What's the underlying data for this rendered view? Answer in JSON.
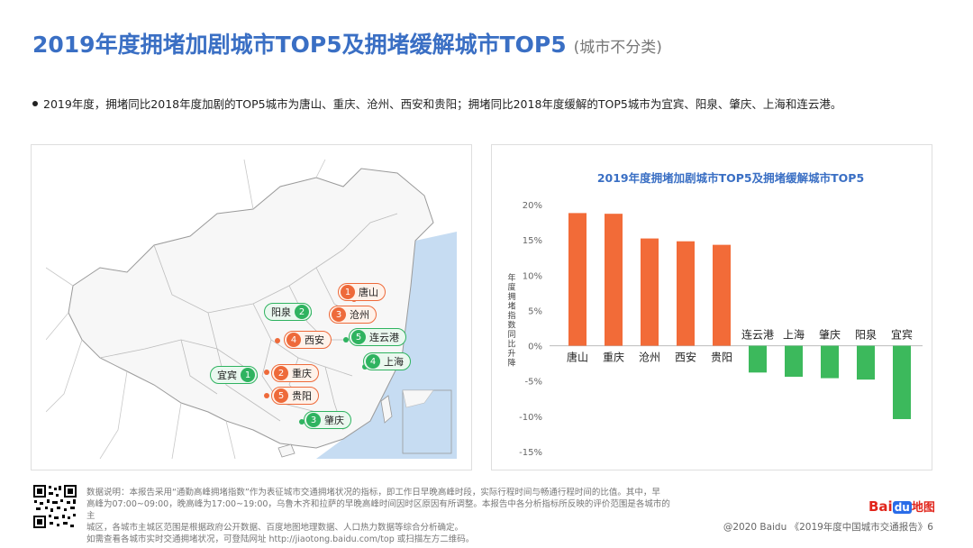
{
  "title": "2019年度拥堵加剧城市TOP5及拥堵缓解城市TOP5",
  "title_sub": "(城市不分类)",
  "bullet": "2019年度，拥堵同比2018年度加剧的TOP5城市为唐山、重庆、沧州、西安和贵阳；拥堵同比2018年度缓解的TOP5城市为宜宾、阳泉、肇庆、上海和连云港。",
  "map_markers": [
    {
      "num": "1",
      "city": "唐山",
      "type": "worse"
    },
    {
      "num": "2",
      "city": "重庆",
      "type": "worse"
    },
    {
      "num": "3",
      "city": "沧州",
      "type": "worse"
    },
    {
      "num": "4",
      "city": "西安",
      "type": "worse"
    },
    {
      "num": "5",
      "city": "贵阳",
      "type": "worse"
    },
    {
      "num": "1",
      "city": "宜宾",
      "type": "better"
    },
    {
      "num": "2",
      "city": "阳泉",
      "type": "better"
    },
    {
      "num": "3",
      "city": "肇庆",
      "type": "better"
    },
    {
      "num": "4",
      "city": "上海",
      "type": "better"
    },
    {
      "num": "5",
      "city": "连云港",
      "type": "better"
    }
  ],
  "chart_data": {
    "type": "bar",
    "title": "2019年度拥堵加剧城市TOP5及拥堵缓解城市TOP5",
    "ylabel": "年度拥堵指数同比升降",
    "categories": [
      "唐山",
      "重庆",
      "沧州",
      "西安",
      "贵阳",
      "连云港",
      "上海",
      "肇庆",
      "阳泉",
      "宜宾"
    ],
    "values": [
      18.8,
      18.7,
      15.2,
      14.8,
      14.3,
      -3.8,
      -4.4,
      -4.6,
      -4.8,
      -10.4
    ],
    "ylim": [
      -15,
      20
    ],
    "yticks": [
      "20%",
      "15%",
      "10%",
      "5%",
      "0%",
      "-5%",
      "-10%",
      "-15%"
    ],
    "ytick_values": [
      20,
      15,
      10,
      5,
      0,
      -5,
      -10,
      -15
    ],
    "colors": {
      "positive": "#f26b38",
      "negative": "#3cb95c"
    },
    "grid": false,
    "legend": "none"
  },
  "footer": {
    "note_line1": "数据说明：本报告采用“通勤高峰拥堵指数”作为表征城市交通拥堵状况的指标，即工作日早晚高峰时段，实际行程时间与畅通行程时间的比值。其中，早",
    "note_line2": "高峰为07:00~09:00，晚高峰为17:00~19:00，乌鲁木齐和拉萨的早晚高峰时间因时区原因有所调整。本报告中各分析指标所反映的评价范围是各城市的主",
    "note_line3": "城区，各城市主城区范围是根据政府公开数据、百度地图地理数据、人口热力数据等综合分析确定。",
    "note_line4": "如需查看各城市实时交通拥堵状况，可登陆网址 http://jiaotong.baidu.com/top 或扫描左方二维码。",
    "copyright": "@2020 Baidu 《2019年度中国城市交通报告》6",
    "logo_bai": "Bai",
    "logo_du": "du",
    "logo_map": "地图"
  }
}
